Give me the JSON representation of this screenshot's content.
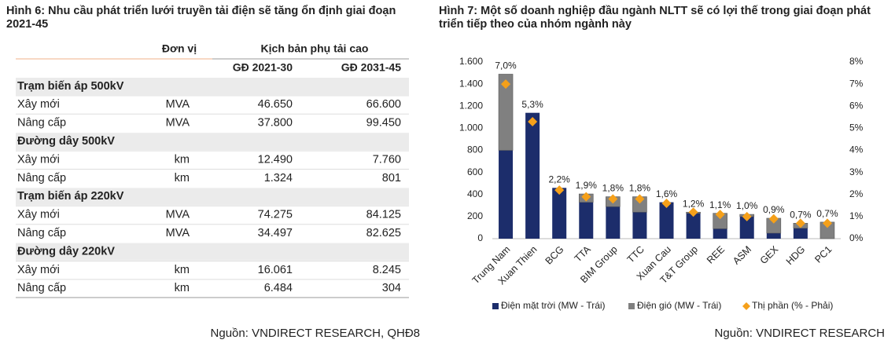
{
  "table_figure": {
    "title": "Hình 6: Nhu cầu phát triển lưới truyền tải điện sẽ tăng ổn định giai đoạn 2021-45",
    "header": {
      "unit": "Đơn vị",
      "scenario": "Kịch bản phụ tải cao",
      "periods": [
        "GĐ 2021-30",
        "GĐ 2031-45"
      ]
    },
    "sections": [
      {
        "name": "Trạm biến áp 500kV",
        "rows": [
          [
            "Xây mới",
            "MVA",
            "46.650",
            "66.600"
          ],
          [
            "Nâng cấp",
            "MVA",
            "37.800",
            "99.450"
          ]
        ]
      },
      {
        "name": "Đường dây 500kV",
        "rows": [
          [
            "Xây mới",
            "km",
            "12.490",
            "7.760"
          ],
          [
            "Nâng cấp",
            "km",
            "1.324",
            "801"
          ]
        ]
      },
      {
        "name": "Trạm biến áp 220kV",
        "rows": [
          [
            "Xây mới",
            "MVA",
            "74.275",
            "84.125"
          ],
          [
            "Nâng cấp",
            "MVA",
            "34.497",
            "82.625"
          ]
        ]
      },
      {
        "name": "Đường dây 220kV",
        "rows": [
          [
            "Xây mới",
            "km",
            "16.061",
            "8.245"
          ],
          [
            "Nâng cấp",
            "km",
            "6.484",
            "304"
          ]
        ]
      }
    ],
    "source": "Nguồn: VNDIRECT RESEARCH, QHĐ8"
  },
  "chart_data": {
    "type": "bar",
    "stacked": true,
    "title": "Hình 7: Một số doanh nghiệp đầu ngành NLTT sẽ có lợi thế trong giai đoạn phát triển tiếp theo của nhóm ngành này",
    "categories": [
      "Trung Nam",
      "Xuan Thien",
      "BCG",
      "TTA",
      "BIM Group",
      "TTC",
      "Xuan Cau",
      "T&T Group",
      "REE",
      "ASM",
      "GEX",
      "HDG",
      "PC1"
    ],
    "series": [
      {
        "name": "Điện mặt trời (MW - Trái)",
        "color": "#1c2d6b",
        "values": [
          800,
          1140,
          460,
          330,
          290,
          240,
          330,
          230,
          90,
          200,
          50,
          95,
          0
        ]
      },
      {
        "name": "Điện gió (MW - Trái)",
        "color": "#808080",
        "values": [
          690,
          0,
          0,
          75,
          90,
          140,
          0,
          10,
          140,
          20,
          135,
          45,
          150
        ]
      },
      {
        "name": "Thị phần (% - Phải)",
        "color": "#f5a01a",
        "axis": "y2",
        "marker": "diamond",
        "values": [
          7.0,
          5.3,
          2.2,
          1.9,
          1.8,
          1.8,
          1.6,
          1.2,
          1.1,
          1.0,
          0.9,
          0.7,
          0.7
        ],
        "value_labels": [
          "7,0%",
          "5,3%",
          "2,2%",
          "1,9%",
          "1,8%",
          "1,8%",
          "1,6%",
          "1,2%",
          "1,1%",
          "1,0%",
          "0,9%",
          "0,7%",
          "0,7%"
        ]
      }
    ],
    "ylim": [
      0,
      1600
    ],
    "yticks": [
      0,
      200,
      400,
      600,
      800,
      {
        "value": 1000,
        "label": "1.000"
      },
      {
        "value": 1200,
        "label": "1.200"
      },
      {
        "value": 1400,
        "label": "1.400"
      },
      {
        "value": 1600,
        "label": "1.600"
      }
    ],
    "y2lim": [
      0,
      8
    ],
    "y2ticks": [
      {
        "value": 0,
        "label": "0%"
      },
      {
        "value": 1,
        "label": "1%"
      },
      {
        "value": 2,
        "label": "2%"
      },
      {
        "value": 3,
        "label": "3%"
      },
      {
        "value": 4,
        "label": "4%"
      },
      {
        "value": 5,
        "label": "5%"
      },
      {
        "value": 6,
        "label": "6%"
      },
      {
        "value": 7,
        "label": "7%"
      },
      {
        "value": 8,
        "label": "8%"
      }
    ],
    "grid": false,
    "legend": "bottom",
    "source": "Nguồn: VNDIRECT RESEARCH"
  }
}
